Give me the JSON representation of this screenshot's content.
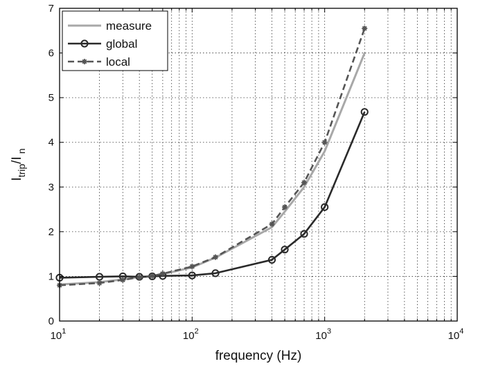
{
  "chart_data": {
    "type": "line",
    "xscale": "log",
    "xlim": [
      10,
      10000
    ],
    "ylim": [
      0,
      7
    ],
    "xlabel": "frequency (Hz)",
    "ylabel": {
      "main": "I",
      "sub1": "trip",
      "sep": "/I",
      "sub2": "n"
    },
    "grid": true,
    "legend_position": "top-left",
    "xticks": [
      {
        "value": 10,
        "base": "10",
        "exp": "1"
      },
      {
        "value": 100,
        "base": "10",
        "exp": "2"
      },
      {
        "value": 1000,
        "base": "10",
        "exp": "3"
      },
      {
        "value": 10000,
        "base": "10",
        "exp": "4"
      }
    ],
    "yticks": [
      0,
      1,
      2,
      3,
      4,
      5,
      6,
      7
    ],
    "series": [
      {
        "name": "measure",
        "color": "#a8a8a8",
        "dash": "solid",
        "marker": "none",
        "x": [
          10,
          20,
          30,
          40,
          50,
          60,
          100,
          150,
          400,
          500,
          700,
          1000,
          2000
        ],
        "y": [
          0.82,
          0.87,
          0.93,
          0.98,
          1.0,
          1.05,
          1.2,
          1.42,
          2.1,
          2.45,
          3.0,
          3.8,
          6.0
        ]
      },
      {
        "name": "global",
        "color": "#2a2a2a",
        "dash": "solid",
        "marker": "circle",
        "x": [
          10,
          20,
          30,
          40,
          50,
          60,
          100,
          150,
          400,
          500,
          700,
          1000,
          2000
        ],
        "y": [
          0.97,
          0.99,
          1.0,
          0.99,
          1.0,
          1.01,
          1.02,
          1.07,
          1.37,
          1.6,
          1.95,
          2.55,
          4.68
        ]
      },
      {
        "name": "local",
        "color": "#555555",
        "dash": "dashed",
        "marker": "asterisk",
        "x": [
          10,
          20,
          30,
          40,
          50,
          60,
          100,
          150,
          400,
          500,
          700,
          1000,
          2000
        ],
        "y": [
          0.8,
          0.85,
          0.92,
          0.98,
          1.01,
          1.06,
          1.22,
          1.43,
          2.17,
          2.55,
          3.1,
          4.0,
          6.55
        ]
      }
    ]
  }
}
